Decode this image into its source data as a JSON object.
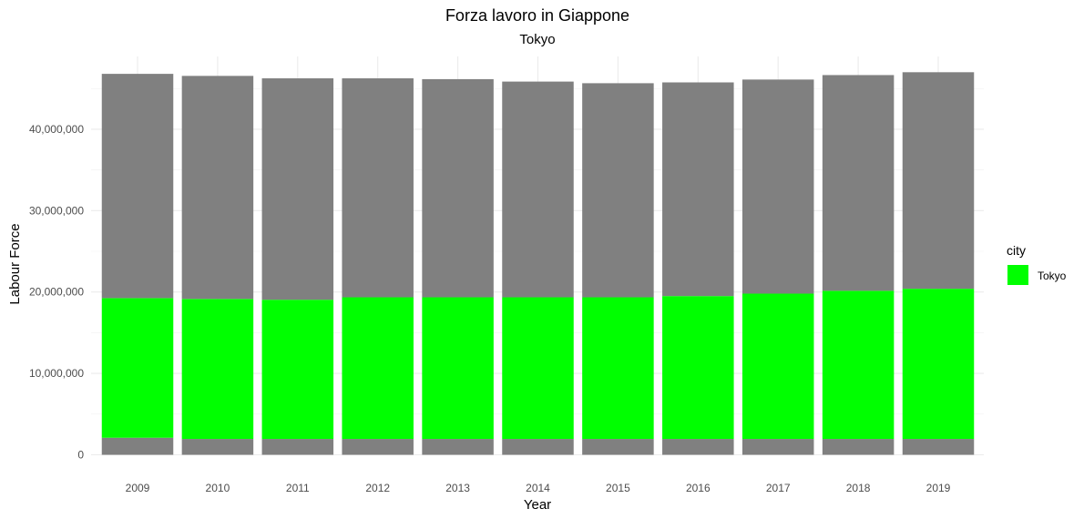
{
  "chart_data": {
    "type": "bar",
    "stacked": true,
    "title": "Forza lavoro in Giappone",
    "subtitle": "Tokyo",
    "xlabel": "Year",
    "ylabel": "Labour Force",
    "categories": [
      "2009",
      "2010",
      "2011",
      "2012",
      "2013",
      "2014",
      "2015",
      "2016",
      "2017",
      "2018",
      "2019"
    ],
    "series": [
      {
        "color": "#808080",
        "values": [
          2100000,
          1950000,
          1950000,
          1950000,
          1950000,
          1950000,
          1950000,
          1950000,
          1950000,
          1950000,
          1950000
        ]
      },
      {
        "name": "Tokyo",
        "color": "#00ff00",
        "values": [
          17150000,
          17200000,
          17100000,
          17400000,
          17400000,
          17400000,
          17400000,
          17550000,
          17850000,
          18200000,
          18450000
        ]
      },
      {
        "color": "#808080",
        "values": [
          27550000,
          27400000,
          27200000,
          26900000,
          26800000,
          26500000,
          26300000,
          26250000,
          26300000,
          26500000,
          26600000
        ]
      }
    ],
    "ylim": [
      0,
      47000000
    ],
    "yticks": [
      0,
      10000000,
      20000000,
      30000000,
      40000000
    ],
    "ytick_labels": [
      "0",
      "10,000,000",
      "20,000,000",
      "30,000,000",
      "40,000,000"
    ],
    "grid": true,
    "legend": {
      "title": "city",
      "position": "right",
      "entries": [
        {
          "label": "Tokyo",
          "color": "#00ff00"
        }
      ]
    }
  }
}
